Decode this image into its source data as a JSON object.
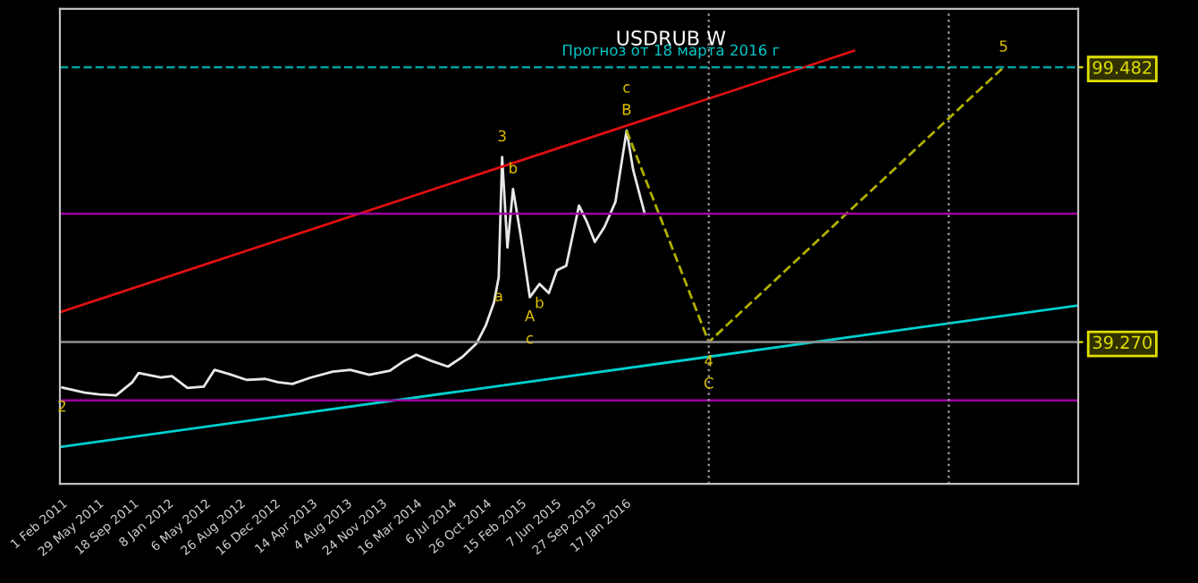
{
  "chart_data": {
    "type": "line",
    "title": "USDRUB W",
    "subtitle": "Прогноз от 18 марта 2016 г",
    "xlim": [
      "2011-01-25",
      "2020-01-10"
    ],
    "ylim": [
      8.2,
      112.3
    ],
    "xticks": [
      {
        "value": "2011-02-01",
        "label": "1 Feb 2011"
      },
      {
        "value": "2011-05-29",
        "label": "29 May 2011"
      },
      {
        "value": "2011-09-18",
        "label": "18 Sep 2011"
      },
      {
        "value": "2012-01-08",
        "label": "8 Jan 2012"
      },
      {
        "value": "2012-05-06",
        "label": "6 May 2012"
      },
      {
        "value": "2012-08-26",
        "label": "26 Aug 2012"
      },
      {
        "value": "2012-12-16",
        "label": "16 Dec 2012"
      },
      {
        "value": "2013-04-14",
        "label": "14 Apr 2013"
      },
      {
        "value": "2013-08-04",
        "label": "4 Aug 2013"
      },
      {
        "value": "2013-11-24",
        "label": "24 Nov 2013"
      },
      {
        "value": "2014-03-16",
        "label": "16 Mar 2014"
      },
      {
        "value": "2014-07-06",
        "label": "6 Jul 2014"
      },
      {
        "value": "2014-10-26",
        "label": "26 Oct 2014"
      },
      {
        "value": "2015-02-15",
        "label": "15 Feb 2015"
      },
      {
        "value": "2015-06-07",
        "label": "7 Jun 2015"
      },
      {
        "value": "2015-09-27",
        "label": "27 Sep 2015"
      },
      {
        "value": "2016-01-17",
        "label": "17 Jan 2016"
      }
    ],
    "yticks": [
      {
        "value": 99.482,
        "label": "99.482"
      },
      {
        "value": 39.27,
        "label": "39.270"
      }
    ],
    "grid": false,
    "legend": false,
    "series": [
      {
        "color": "#e8e8e8",
        "x": [
          "2011-02-01",
          "2011-04-15",
          "2011-06-01",
          "2011-07-25",
          "2011-09-15",
          "2011-10-05",
          "2011-12-15",
          "2012-01-20",
          "2012-03-10",
          "2012-05-01",
          "2012-06-05",
          "2012-07-20",
          "2012-09-15",
          "2012-11-15",
          "2012-12-25",
          "2013-02-10",
          "2013-04-10",
          "2013-06-20",
          "2013-08-15",
          "2013-10-15",
          "2013-12-20",
          "2014-02-01",
          "2014-03-15",
          "2014-05-01",
          "2014-06-25",
          "2014-08-10",
          "2014-09-25",
          "2014-10-25",
          "2014-11-20",
          "2014-12-05",
          "2014-12-16",
          "2015-01-02",
          "2015-01-20",
          "2015-02-15",
          "2015-03-15",
          "2015-04-15",
          "2015-05-15",
          "2015-06-10",
          "2015-07-10",
          "2015-08-20",
          "2015-09-15",
          "2015-10-10",
          "2015-11-10",
          "2015-12-15",
          "2016-01-20",
          "2016-02-10",
          "2016-03-18"
        ],
        "values": [
          29.3,
          28.2,
          27.8,
          27.6,
          30.5,
          32.5,
          31.5,
          31.8,
          29.2,
          29.5,
          33.2,
          32.3,
          31.0,
          31.2,
          30.5,
          30.1,
          31.5,
          32.8,
          33.2,
          32.1,
          33.0,
          35.0,
          36.5,
          35.2,
          33.9,
          36.0,
          39.0,
          43.0,
          48.0,
          53.5,
          79.8,
          60.0,
          72.8,
          62.0,
          49.1,
          52.0,
          50.0,
          55.0,
          56.0,
          69.2,
          65.5,
          61.2,
          64.5,
          70.0,
          85.6,
          77.0,
          67.4
        ]
      },
      {
        "color": "#b0b000",
        "line_style": "dashed",
        "x": [
          "2016-01-20",
          "2016-10-10",
          "2019-05-15"
        ],
        "values": [
          85.6,
          39.27,
          99.482
        ]
      },
      {
        "color": "#e01010",
        "x": [
          "2011-01-25",
          "2018-01-20"
        ],
        "values": [
          45.8,
          103.1
        ]
      },
      {
        "color": "#00d0d0",
        "x": [
          "2011-01-25",
          "2020-01-10"
        ],
        "values": [
          16.3,
          47.3
        ]
      }
    ],
    "ref_lines": [
      {
        "axis": "y",
        "value": 67.4,
        "color": "#a000a0"
      },
      {
        "axis": "y",
        "value": 26.5,
        "color": "#a000a0"
      },
      {
        "axis": "y",
        "value": 39.27,
        "color": "#909090"
      },
      {
        "axis": "y",
        "value": 99.482,
        "color": "#00a0a0",
        "line_style": "dashed"
      },
      {
        "axis": "x",
        "value": "2016-10-10",
        "color": "#909090",
        "line_style": "dotted"
      },
      {
        "axis": "x",
        "value": "2018-11-20",
        "color": "#909090",
        "line_style": "dotted"
      }
    ],
    "annotations": [
      {
        "text": "2",
        "x": "2011-02-01",
        "y": 29.3
      },
      {
        "text": "3",
        "x": "2014-12-16",
        "y": 79.8
      },
      {
        "text": "4",
        "x": "2016-10-10",
        "y": 39.27
      },
      {
        "text": "5",
        "x": "2019-05-15",
        "y": 99.482
      },
      {
        "text": "A",
        "x": "2015-03-15",
        "y": 49.1
      },
      {
        "text": "B",
        "x": "2016-01-20",
        "y": 85.6
      },
      {
        "text": "C",
        "x": "2016-10-10",
        "y": 39.27
      },
      {
        "text": "a",
        "x": "2014-12-05",
        "y": 53.5
      },
      {
        "text": "b",
        "x": "2015-01-20",
        "y": 72.8
      },
      {
        "text": "c",
        "x": "2015-03-15",
        "y": 49.1
      },
      {
        "text": "b",
        "x": "2015-04-15",
        "y": 52.0
      },
      {
        "text": "c",
        "x": "2016-01-20",
        "y": 85.6
      }
    ]
  }
}
